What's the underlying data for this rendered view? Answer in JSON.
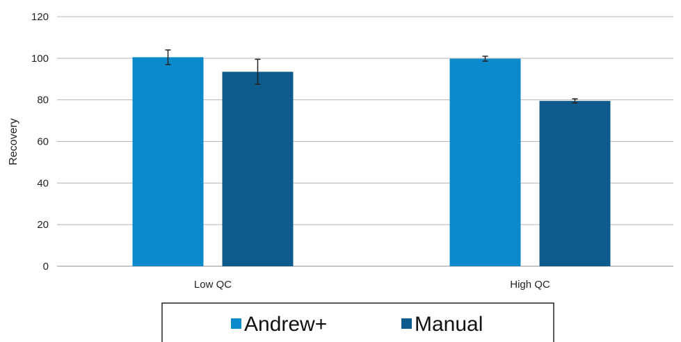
{
  "chart_data": {
    "type": "bar",
    "title": "",
    "xlabel": "",
    "ylabel": "Recovery",
    "ylim": [
      0,
      120
    ],
    "yticks": [
      0,
      20,
      40,
      60,
      80,
      100,
      120
    ],
    "grid": true,
    "legend_position": "bottom",
    "categories": [
      "Low QC",
      "High QC"
    ],
    "series": [
      {
        "name": "Andrew+",
        "color": "#0b8acb",
        "values": [
          100.5,
          99.8
        ],
        "errors": [
          3.5,
          1.2
        ]
      },
      {
        "name": "Manual",
        "color": "#0d5a8c",
        "values": [
          93.5,
          79.5
        ],
        "errors": [
          6.0,
          1.0
        ]
      }
    ]
  }
}
